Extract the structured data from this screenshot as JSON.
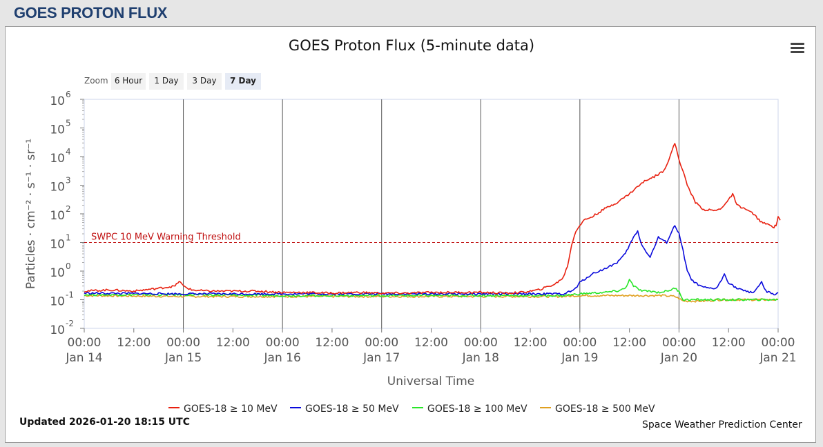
{
  "page": {
    "heading": "GOES PROTON FLUX"
  },
  "toolbar": {
    "zoom_label": "Zoom",
    "zoom_buttons": [
      "6 Hour",
      "1 Day",
      "3 Day",
      "7 Day"
    ],
    "active_zoom": "7 Day",
    "menu_icon": "hamburger-menu-icon"
  },
  "footer": {
    "updated": "Updated 2026-01-20 18:15 UTC",
    "credits": "Space Weather Prediction Center"
  },
  "colors": {
    "10MeV": "#e8200f",
    "50MeV": "#0a0adc",
    "100MeV": "#28e628",
    "500MeV": "#e0a020",
    "threshold": "#c01010",
    "heading": "#1f3f6f"
  },
  "chart_data": {
    "type": "line",
    "title": "GOES Proton Flux (5-minute data)",
    "xlabel": "Universal Time",
    "ylabel": "Particles · cm⁻² · s⁻¹ · sr⁻¹",
    "y_scale": "log",
    "ylim": [
      0.01,
      1000000
    ],
    "y_ticks": [
      "10",
      "10",
      "10",
      "10",
      "10",
      "10",
      "10",
      "10",
      "10"
    ],
    "y_tick_exponents": [
      "-2",
      "-1",
      "0",
      "1",
      "2",
      "3",
      "4",
      "5",
      "6"
    ],
    "xlim": [
      0,
      168
    ],
    "x_ticks": [
      {
        "t": 0,
        "time": "00:00",
        "date": "Jan 14"
      },
      {
        "t": 12,
        "time": "12:00",
        "date": ""
      },
      {
        "t": 24,
        "time": "00:00",
        "date": "Jan 15"
      },
      {
        "t": 36,
        "time": "12:00",
        "date": ""
      },
      {
        "t": 48,
        "time": "00:00",
        "date": "Jan 16"
      },
      {
        "t": 60,
        "time": "12:00",
        "date": ""
      },
      {
        "t": 72,
        "time": "00:00",
        "date": "Jan 17"
      },
      {
        "t": 84,
        "time": "12:00",
        "date": ""
      },
      {
        "t": 96,
        "time": "00:00",
        "date": "Jan 18"
      },
      {
        "t": 108,
        "time": "12:00",
        "date": ""
      },
      {
        "t": 120,
        "time": "00:00",
        "date": "Jan 19"
      },
      {
        "t": 132,
        "time": "12:00",
        "date": ""
      },
      {
        "t": 144,
        "time": "00:00",
        "date": "Jan 20"
      },
      {
        "t": 156,
        "time": "12:00",
        "date": ""
      },
      {
        "t": 168,
        "time": "00:00",
        "date": "Jan 21"
      }
    ],
    "threshold": {
      "value": 10,
      "label": "SWPC 10 MeV Warning Threshold"
    },
    "grid": "vertical day lines",
    "legend_position": "bottom",
    "series": [
      {
        "name": "GOES-18 ≥ 10 MeV",
        "color": "#e8200f",
        "points": [
          [
            0,
            0.2
          ],
          [
            6,
            0.22
          ],
          [
            12,
            0.2
          ],
          [
            18,
            0.25
          ],
          [
            22,
            0.3
          ],
          [
            23,
            0.45
          ],
          [
            24,
            0.3
          ],
          [
            26,
            0.22
          ],
          [
            30,
            0.2
          ],
          [
            36,
            0.2
          ],
          [
            42,
            0.2
          ],
          [
            48,
            0.18
          ],
          [
            54,
            0.18
          ],
          [
            60,
            0.17
          ],
          [
            66,
            0.18
          ],
          [
            72,
            0.17
          ],
          [
            78,
            0.17
          ],
          [
            84,
            0.18
          ],
          [
            90,
            0.18
          ],
          [
            96,
            0.18
          ],
          [
            102,
            0.17
          ],
          [
            106,
            0.18
          ],
          [
            110,
            0.22
          ],
          [
            114,
            0.35
          ],
          [
            116,
            0.6
          ],
          [
            117,
            1.5
          ],
          [
            118,
            8
          ],
          [
            119,
            25
          ],
          [
            120,
            40
          ],
          [
            121,
            60
          ],
          [
            123,
            80
          ],
          [
            126,
            150
          ],
          [
            129,
            250
          ],
          [
            132,
            500
          ],
          [
            134,
            900
          ],
          [
            136,
            1500
          ],
          [
            138,
            2000
          ],
          [
            140,
            3000
          ],
          [
            141,
            5000
          ],
          [
            142,
            12000
          ],
          [
            143,
            30000
          ],
          [
            144,
            8000
          ],
          [
            145,
            3000
          ],
          [
            146,
            1000
          ],
          [
            148,
            250
          ],
          [
            150,
            140
          ],
          [
            153,
            130
          ],
          [
            154,
            150
          ],
          [
            156,
            300
          ],
          [
            157,
            500
          ],
          [
            158,
            200
          ],
          [
            160,
            150
          ],
          [
            162,
            100
          ],
          [
            163,
            70
          ],
          [
            164,
            50
          ],
          [
            166,
            40
          ],
          [
            167,
            35
          ],
          [
            167.5,
            40
          ],
          [
            168,
            80
          ],
          [
            168.5,
            60
          ]
        ]
      },
      {
        "name": "GOES-18 ≥ 50 MeV",
        "color": "#0a0adc",
        "points": [
          [
            0,
            0.17
          ],
          [
            24,
            0.16
          ],
          [
            48,
            0.16
          ],
          [
            72,
            0.16
          ],
          [
            96,
            0.16
          ],
          [
            110,
            0.16
          ],
          [
            116,
            0.16
          ],
          [
            117,
            0.18
          ],
          [
            118,
            0.2
          ],
          [
            119,
            0.25
          ],
          [
            120,
            0.4
          ],
          [
            121,
            0.5
          ],
          [
            123,
            0.8
          ],
          [
            126,
            1.2
          ],
          [
            129,
            2
          ],
          [
            131,
            4
          ],
          [
            132,
            8
          ],
          [
            133,
            15
          ],
          [
            134,
            25
          ],
          [
            135,
            8
          ],
          [
            136,
            5
          ],
          [
            137,
            3
          ],
          [
            139,
            15
          ],
          [
            141,
            10
          ],
          [
            142,
            20
          ],
          [
            143,
            40
          ],
          [
            144,
            20
          ],
          [
            145,
            5
          ],
          [
            146,
            1
          ],
          [
            147,
            0.5
          ],
          [
            149,
            0.3
          ],
          [
            151,
            0.25
          ],
          [
            153,
            0.25
          ],
          [
            154,
            0.4
          ],
          [
            155,
            0.8
          ],
          [
            156,
            0.4
          ],
          [
            158,
            0.25
          ],
          [
            160,
            0.2
          ],
          [
            162,
            0.18
          ],
          [
            164,
            0.4
          ],
          [
            165,
            0.2
          ],
          [
            167,
            0.15
          ],
          [
            168,
            0.18
          ]
        ]
      },
      {
        "name": "GOES-18 ≥ 100 MeV",
        "color": "#28e628",
        "points": [
          [
            0,
            0.15
          ],
          [
            24,
            0.15
          ],
          [
            48,
            0.14
          ],
          [
            72,
            0.14
          ],
          [
            96,
            0.14
          ],
          [
            110,
            0.14
          ],
          [
            116,
            0.14
          ],
          [
            118,
            0.15
          ],
          [
            120,
            0.16
          ],
          [
            123,
            0.17
          ],
          [
            126,
            0.18
          ],
          [
            129,
            0.2
          ],
          [
            131,
            0.25
          ],
          [
            132,
            0.5
          ],
          [
            133,
            0.3
          ],
          [
            135,
            0.2
          ],
          [
            137,
            0.2
          ],
          [
            139,
            0.18
          ],
          [
            141,
            0.2
          ],
          [
            142,
            0.22
          ],
          [
            143,
            0.25
          ],
          [
            144,
            0.2
          ],
          [
            145,
            0.1
          ],
          [
            146,
            0.1
          ],
          [
            149,
            0.1
          ],
          [
            153,
            0.1
          ],
          [
            156,
            0.1
          ],
          [
            160,
            0.1
          ],
          [
            164,
            0.1
          ],
          [
            168,
            0.1
          ]
        ]
      },
      {
        "name": "GOES-18 ≥ 500 MeV",
        "color": "#e0a020",
        "points": [
          [
            0,
            0.14
          ],
          [
            24,
            0.13
          ],
          [
            48,
            0.13
          ],
          [
            72,
            0.13
          ],
          [
            96,
            0.13
          ],
          [
            110,
            0.13
          ],
          [
            116,
            0.13
          ],
          [
            120,
            0.14
          ],
          [
            124,
            0.14
          ],
          [
            128,
            0.14
          ],
          [
            132,
            0.14
          ],
          [
            136,
            0.14
          ],
          [
            140,
            0.14
          ],
          [
            143,
            0.13
          ],
          [
            144,
            0.11
          ],
          [
            145,
            0.09
          ],
          [
            146,
            0.09
          ],
          [
            150,
            0.09
          ],
          [
            154,
            0.1
          ],
          [
            158,
            0.1
          ],
          [
            162,
            0.1
          ],
          [
            166,
            0.1
          ],
          [
            168,
            0.1
          ]
        ]
      }
    ]
  }
}
